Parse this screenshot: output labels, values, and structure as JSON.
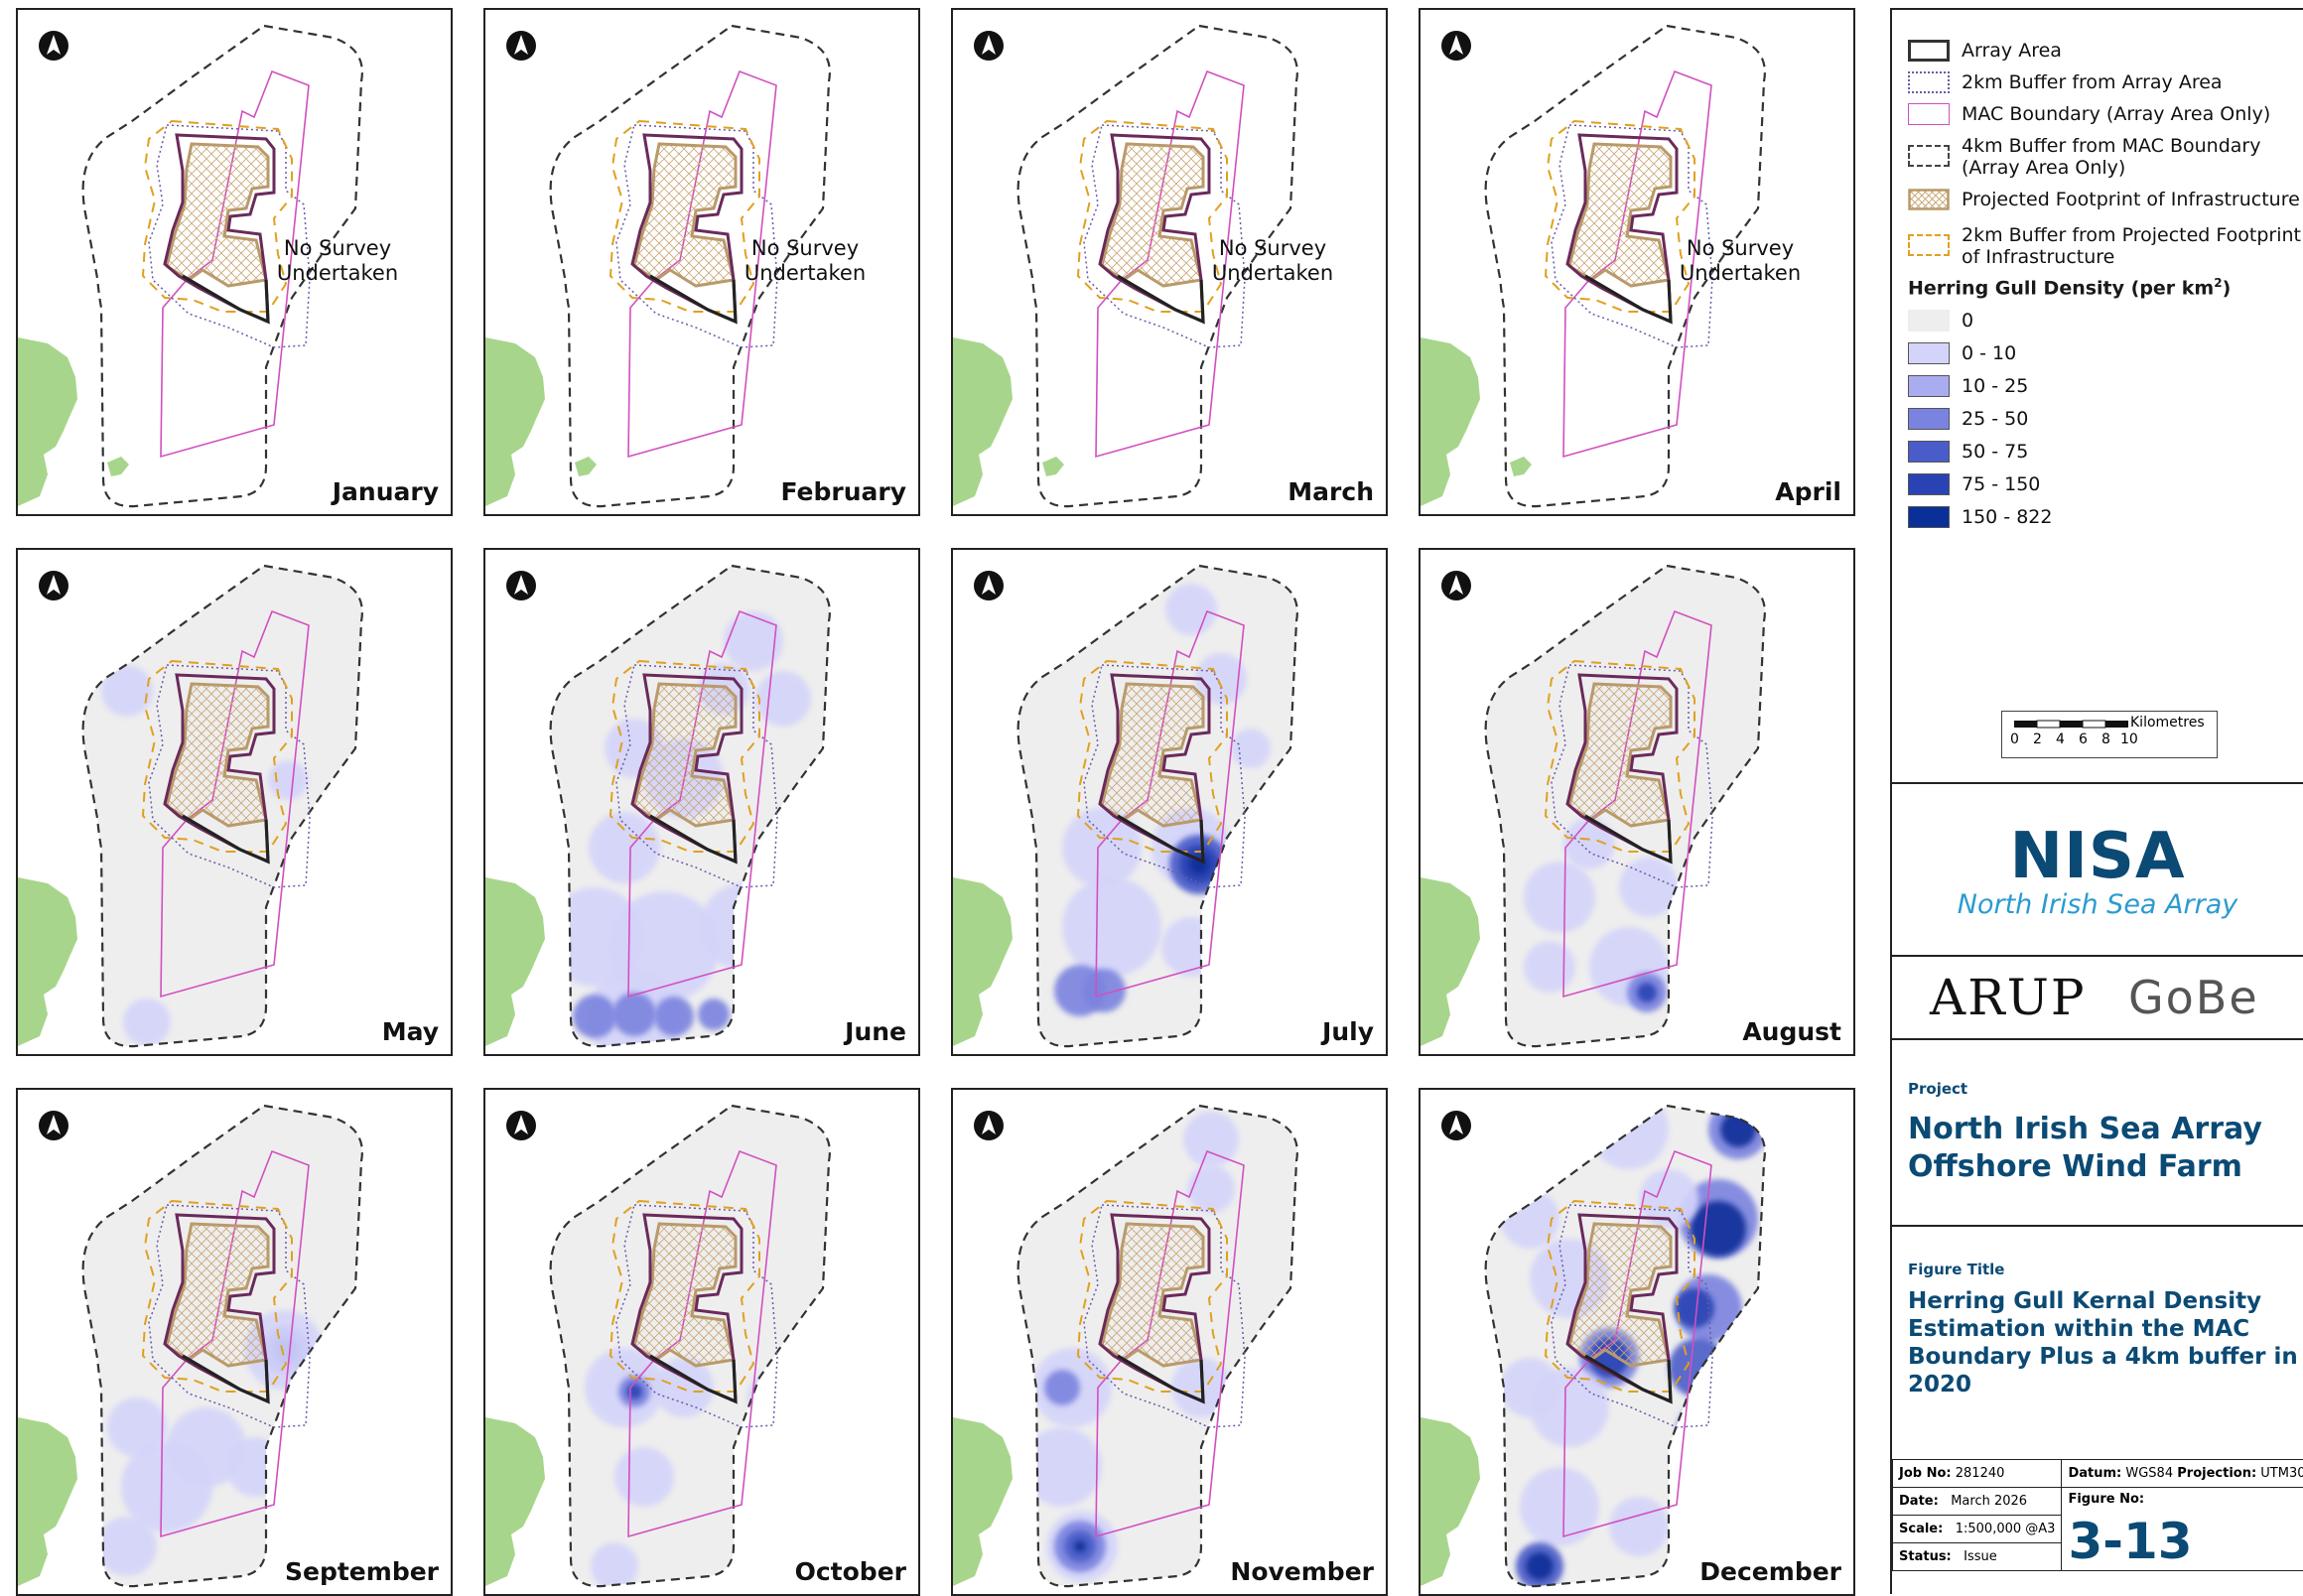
{
  "panels": [
    {
      "month": "January",
      "survey": "No Survey Undertaken",
      "blobs": []
    },
    {
      "month": "February",
      "survey": "No Survey Undertaken",
      "blobs": []
    },
    {
      "month": "March",
      "survey": "No Survey Undertaken",
      "blobs": []
    },
    {
      "month": "April",
      "survey": "No Survey Undertaken",
      "blobs": []
    },
    {
      "month": "May",
      "survey": "",
      "blobs": []
    },
    {
      "month": "June",
      "survey": "",
      "blobs": []
    },
    {
      "month": "July",
      "survey": "",
      "blobs": []
    },
    {
      "month": "August",
      "survey": "",
      "blobs": []
    },
    {
      "month": "September",
      "survey": "",
      "blobs": []
    },
    {
      "month": "October",
      "survey": "",
      "blobs": []
    },
    {
      "month": "November",
      "survey": "",
      "blobs": []
    },
    {
      "month": "December",
      "survey": "",
      "blobs": []
    }
  ],
  "legend": {
    "array_area": "Array Area",
    "buffer_2km_array": "2km Buffer from Array Area",
    "mac_boundary": "MAC Boundary (Array Area Only)",
    "buffer_4km_mac_1": "4km Buffer from MAC Boundary",
    "buffer_4km_mac_2": "(Array Area Only)",
    "footprint": "Projected Footprint of Infrastructure",
    "buffer_2km_footprint_1": "2km Buffer from Projected Footprint",
    "buffer_2km_footprint_2": "of Infrastructure",
    "density_heading": "Herring Gull Density (per km",
    "density_heading_sup": "2",
    "density_heading_end": ")",
    "classes": [
      {
        "label": "0",
        "color": "#eeeeee"
      },
      {
        "label": "0 - 10",
        "color": "#d4d4fa"
      },
      {
        "label": "10 - 25",
        "color": "#a9acee"
      },
      {
        "label": "25 - 50",
        "color": "#7a83df"
      },
      {
        "label": "50 - 75",
        "color": "#4a5cc9"
      },
      {
        "label": "75 - 150",
        "color": "#2a43b4"
      },
      {
        "label": "150 - 822",
        "color": "#0b2f98"
      }
    ]
  },
  "scale": {
    "unit": "Kilometres",
    "ticks": [
      "0",
      "2",
      "4",
      "6",
      "8",
      "10"
    ]
  },
  "logos": {
    "nisa": "NISA",
    "nisa_sub": "North Irish Sea Array",
    "arup": "ARUP",
    "gobe": "GoBe"
  },
  "project": {
    "label": "Project",
    "title_1": "North Irish Sea Array",
    "title_2": "Offshore Wind Farm"
  },
  "figure_title": {
    "label": "Figure Title",
    "lines": [
      "Herring Gull Kernal Density",
      "Estimation within the MAC",
      "Boundary Plus a 4km buffer in",
      "2020"
    ]
  },
  "info": {
    "job_no_label": "Job No:",
    "job_no": "281240",
    "datum_label": "Datum:",
    "datum": "WGS84",
    "projection_label": "Projection:",
    "projection": "UTM30",
    "date_label": "Date:",
    "date": "March 2026",
    "figure_no_label": "Figure No:",
    "scale_label": "Scale:",
    "scale": "1:500,000 @A3",
    "figure_no": "3-13",
    "status_label": "Status:",
    "status": "Issue"
  }
}
